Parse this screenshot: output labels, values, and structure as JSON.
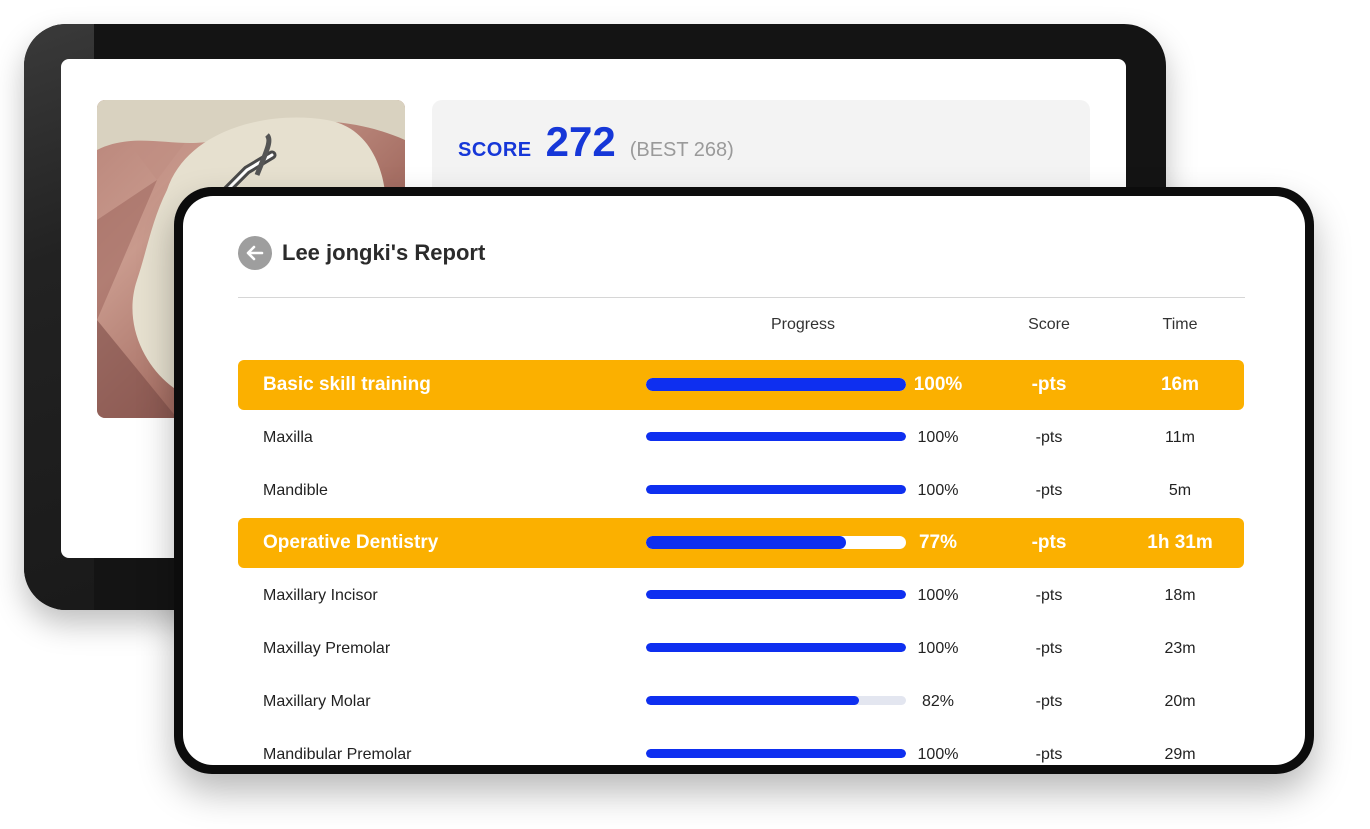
{
  "score_card": {
    "label": "SCORE",
    "value": "272",
    "best": "(BEST 268)"
  },
  "report": {
    "title": "Lee jongki's Report",
    "columns": {
      "progress": "Progress",
      "score": "Score",
      "time": "Time"
    },
    "rows": [
      {
        "name": "Basic skill training",
        "group": true,
        "progress": 1.0,
        "progress_label": "100%",
        "score": "-pts",
        "time": "16m"
      },
      {
        "name": "Maxilla",
        "group": false,
        "progress": 1.0,
        "progress_label": "100%",
        "score": "-pts",
        "time": "11m"
      },
      {
        "name": "Mandible",
        "group": false,
        "progress": 1.0,
        "progress_label": "100%",
        "score": "-pts",
        "time": "5m"
      },
      {
        "name": "Operative Dentistry",
        "group": true,
        "progress": 0.77,
        "progress_label": "77%",
        "score": "-pts",
        "time": "1h 31m"
      },
      {
        "name": "Maxillary Incisor",
        "group": false,
        "progress": 1.0,
        "progress_label": "100%",
        "score": "-pts",
        "time": "18m"
      },
      {
        "name": "Maxillay Premolar",
        "group": false,
        "progress": 1.0,
        "progress_label": "100%",
        "score": "-pts",
        "time": "23m"
      },
      {
        "name": "Maxillary Molar",
        "group": false,
        "progress": 0.82,
        "progress_label": "82%",
        "score": "-pts",
        "time": "20m"
      },
      {
        "name": "Mandibular Premolar",
        "group": false,
        "progress": 1.0,
        "progress_label": "100%",
        "score": "-pts",
        "time": "29m"
      }
    ]
  },
  "colors": {
    "accent_blue": "#0e2ff0",
    "group_row": "#fbb000",
    "score_blue": "#1637d8"
  },
  "icons": {
    "back": "arrow-left-circle-icon"
  }
}
